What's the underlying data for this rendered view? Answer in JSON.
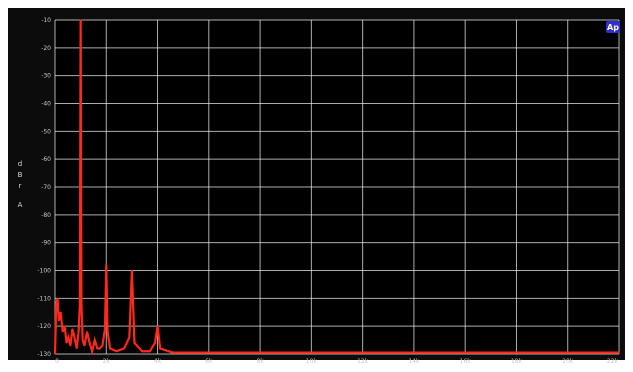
{
  "chart_data": {
    "type": "line",
    "title": "",
    "xlabel": "",
    "ylabel": "d B r A",
    "xlim": [
      0,
      22
    ],
    "ylim": [
      -130,
      -10
    ],
    "x_tick_labels": [
      "0",
      "2k",
      "4k",
      "6k",
      "8k",
      "10k",
      "12k",
      "14k",
      "16k",
      "18k",
      "20k",
      "22k"
    ],
    "y_tick_labels": [
      "-10",
      "-20",
      "-30",
      "-40",
      "-50",
      "-60",
      "-70",
      "-80",
      "-90",
      "-100",
      "-110",
      "-120",
      "-130"
    ],
    "grid": true,
    "badge": "Ap",
    "colors": {
      "background": "#000000",
      "frame": "#0c0c0c",
      "grid": "#e8e8e8",
      "trace": "#ff2a1a",
      "badge": "#2f2fcf"
    },
    "series": [
      {
        "points": [
          [
            0.0,
            -130
          ],
          [
            0.05,
            -112
          ],
          [
            0.1,
            -110
          ],
          [
            0.15,
            -118
          ],
          [
            0.22,
            -115
          ],
          [
            0.3,
            -122
          ],
          [
            0.38,
            -120
          ],
          [
            0.45,
            -126
          ],
          [
            0.52,
            -124
          ],
          [
            0.6,
            -127
          ],
          [
            0.68,
            -121
          ],
          [
            0.76,
            -124
          ],
          [
            0.85,
            -128
          ],
          [
            0.92,
            -122
          ],
          [
            0.97,
            -112
          ],
          [
            1.0,
            -10
          ],
          [
            1.03,
            -112
          ],
          [
            1.08,
            -125
          ],
          [
            1.15,
            -127
          ],
          [
            1.25,
            -122
          ],
          [
            1.35,
            -126
          ],
          [
            1.45,
            -129
          ],
          [
            1.55,
            -125
          ],
          [
            1.65,
            -128
          ],
          [
            1.75,
            -128
          ],
          [
            1.85,
            -127
          ],
          [
            1.95,
            -121
          ],
          [
            2.0,
            -98
          ],
          [
            2.05,
            -122
          ],
          [
            2.15,
            -128
          ],
          [
            2.4,
            -129
          ],
          [
            2.7,
            -128
          ],
          [
            2.9,
            -124
          ],
          [
            3.0,
            -100
          ],
          [
            3.1,
            -126
          ],
          [
            3.4,
            -129
          ],
          [
            3.7,
            -129
          ],
          [
            3.9,
            -126
          ],
          [
            4.0,
            -120
          ],
          [
            4.1,
            -128
          ],
          [
            4.6,
            -129.5
          ],
          [
            5.6,
            -129.5
          ],
          [
            7.0,
            -129.5
          ],
          [
            9.0,
            -129.5
          ],
          [
            12.0,
            -129.5
          ],
          [
            16.0,
            -129.5
          ],
          [
            20.0,
            -129.5
          ],
          [
            22.0,
            -129.5
          ]
        ]
      }
    ]
  }
}
